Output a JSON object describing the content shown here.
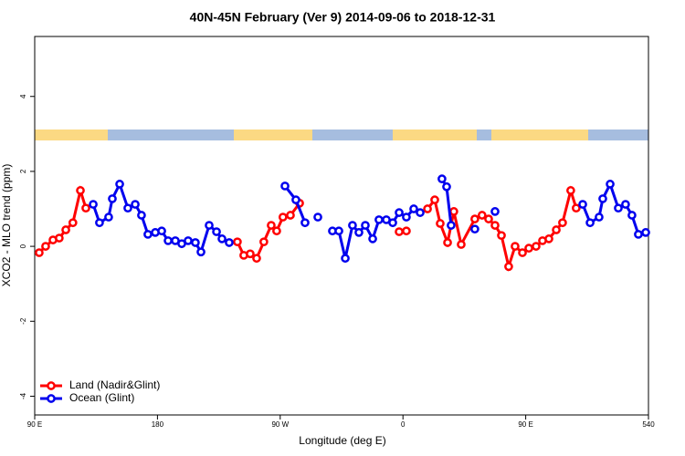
{
  "chart_data": {
    "type": "line",
    "title": "40N-45N February (Ver 9)   2014-09-06 to 2018-12-31",
    "x_label": "Longitude (deg E)",
    "y_label": "XCO2 - MLO trend (ppm)",
    "xlim": [
      90,
      540
    ],
    "ylim": [
      -4.5,
      5.6
    ],
    "xticks": [
      {
        "value": 90,
        "label": "90 E"
      },
      180,
      {
        "value": 270,
        "label": "90 W"
      },
      {
        "value": 360,
        "label": "0"
      },
      {
        "value": 450,
        "label": "90 E"
      },
      540
    ],
    "yticks": [
      -4,
      -2,
      0,
      2,
      4
    ],
    "legend": "bottom-left",
    "series": [
      {
        "name": "Land (Nadir&Glint)",
        "color": "#ff0000",
        "x": [
          93.3,
          98,
          103.4,
          108,
          112.8,
          118,
          123.5,
          127.5,
          null,
          238.6,
          243.3,
          248,
          252.7,
          258,
          263.4,
          267.4,
          272,
          277.5,
          284.2,
          null,
          357.2,
          362.5,
          null,
          378,
          383.3,
          387.3,
          392.7,
          397.3,
          402.7,
          412.7,
          418,
          422.8,
          427.5,
          432.2,
          437.5,
          442.2,
          447.6,
          452.3,
          457.6,
          462.3,
          467,
          472.4,
          477,
          483,
          487
        ],
        "values": [
          -0.17,
          0,
          0.17,
          0.22,
          0.44,
          0.63,
          1.49,
          1.02,
          null,
          0.12,
          -0.24,
          -0.2,
          -0.32,
          0.12,
          0.56,
          0.41,
          0.78,
          0.83,
          1.15,
          null,
          0.39,
          0.41,
          null,
          1.0,
          1.24,
          0.61,
          0.1,
          0.93,
          0.05,
          0.73,
          0.83,
          0.73,
          0.56,
          0.29,
          -0.54,
          0,
          -0.17,
          -0.05,
          0,
          0.15,
          0.2,
          0.44,
          0.63,
          1.49,
          1.02
        ]
      },
      {
        "name": "Ocean (Glint)",
        "color": "#0000ee",
        "x": [
          132.9,
          137.5,
          144.2,
          146.9,
          152.3,
          158.3,
          163.7,
          168.3,
          173,
          178.4,
          183.1,
          187.8,
          193.1,
          197.8,
          202.5,
          207.8,
          211.9,
          217.9,
          223.3,
          227.3,
          232.6,
          null,
          273.5,
          281.5,
          288.2,
          null,
          297.6,
          null,
          308.3,
          313,
          317.7,
          323,
          327.7,
          332.4,
          337.8,
          342.4,
          347.8,
          352.5,
          357.2,
          362.5,
          367.9,
          372.6,
          null,
          388.6,
          392,
          395.3,
          null,
          412.7,
          null,
          427.5,
          null,
          491.8,
          497.2,
          503.8,
          506.5,
          511.9,
          517.9,
          523.2,
          527.9,
          532.6,
          538
        ],
        "values": [
          1.12,
          0.63,
          0.78,
          1.27,
          1.66,
          1.02,
          1.12,
          0.83,
          0.32,
          0.37,
          0.41,
          0.15,
          0.15,
          0.07,
          0.15,
          0.1,
          -0.15,
          0.56,
          0.39,
          0.2,
          0.1,
          null,
          1.61,
          1.24,
          0.63,
          null,
          0.78,
          null,
          0.41,
          0.41,
          -0.32,
          0.56,
          0.37,
          0.56,
          0.2,
          0.71,
          0.71,
          0.63,
          0.9,
          0.78,
          1.0,
          0.9,
          null,
          1.8,
          1.59,
          0.56,
          null,
          0.46,
          null,
          0.93,
          null,
          1.12,
          0.63,
          0.78,
          1.27,
          1.66,
          1.02,
          1.12,
          0.83,
          0.32,
          0.37
        ]
      }
    ]
  }
}
